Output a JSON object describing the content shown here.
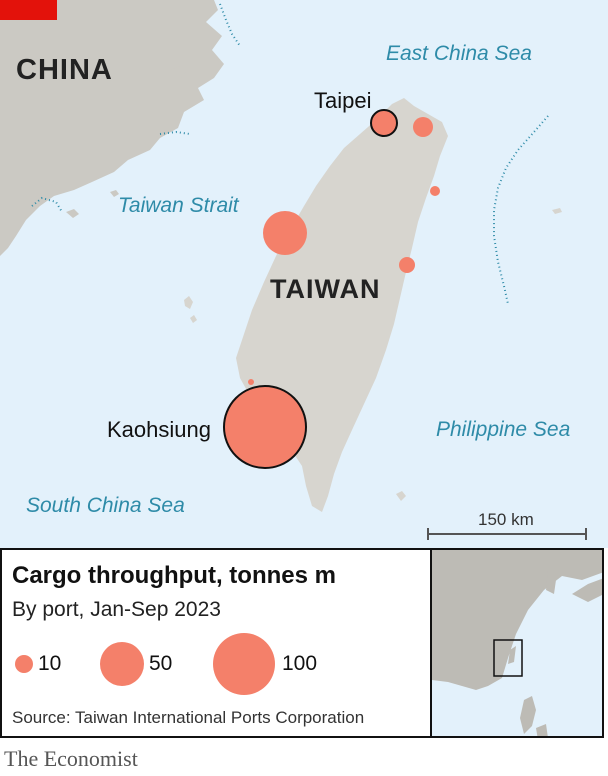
{
  "map": {
    "countries": {
      "china": "CHINA",
      "taiwan": "TAIWAN"
    },
    "seas": {
      "east_china": "East China Sea",
      "taiwan_strait": "Taiwan Strait",
      "philippine": "Philippine Sea",
      "south_china": "South China Sea"
    },
    "cities": {
      "taipei": "Taipei",
      "kaohsiung": "Kaohsiung"
    },
    "scale_label": "150 km",
    "colors": {
      "water": "#e3f1fb",
      "land": "#d7d5cf",
      "china_land": "#cbc9c3",
      "port": "#f4806a",
      "sea_text": "#2e8ba8"
    }
  },
  "legend": {
    "title": "Cargo throughput, tonnes m",
    "subtitle": "By port, Jan-Sep 2023",
    "sizes": [
      {
        "value": 10,
        "label": "10"
      },
      {
        "value": 50,
        "label": "50"
      },
      {
        "value": 100,
        "label": "100"
      }
    ],
    "source": "Source: Taiwan International Ports Corporation"
  },
  "brand": "The Economist"
}
